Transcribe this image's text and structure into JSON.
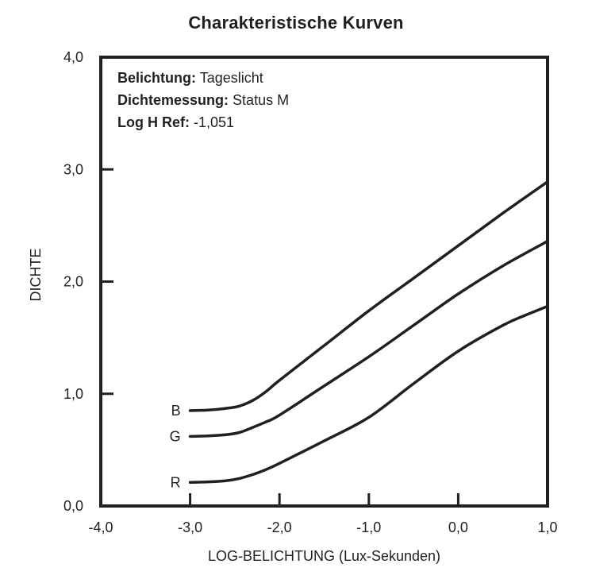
{
  "title": "Charakteristische Kurven",
  "colors": {
    "ink": "#231f20",
    "background": "#ffffff"
  },
  "chart_data": {
    "type": "line",
    "title": "Charakteristische Kurven",
    "xlabel": "LOG-BELICHTUNG (Lux-Sekunden)",
    "ylabel": "DICHTE",
    "xlim": [
      -4.0,
      1.0
    ],
    "ylim": [
      0.0,
      4.0
    ],
    "grid": false,
    "frame": true,
    "legend_position": "curve-start-labels",
    "xticks": {
      "values": [
        -4.0,
        -3.0,
        -2.0,
        -1.0,
        0.0,
        1.0
      ],
      "labels": [
        "-4,0",
        "-3,0",
        "-2,0",
        "-1,0",
        "0,0",
        "1,0"
      ]
    },
    "yticks": {
      "values": [
        0.0,
        1.0,
        2.0,
        3.0,
        4.0
      ],
      "labels": [
        "0,0",
        "1,0",
        "2,0",
        "3,0",
        "4,0"
      ]
    },
    "annotations": [
      {
        "label": "Belichtung:",
        "value": "Tageslicht"
      },
      {
        "label": "Dichtemessung:",
        "value": "Status M"
      },
      {
        "label": "Log H Ref:",
        "value": "-1,051"
      }
    ],
    "series": [
      {
        "name": "B",
        "color": "#231f20",
        "points": [
          [
            -3.0,
            0.85
          ],
          [
            -2.8,
            0.855
          ],
          [
            -2.6,
            0.87
          ],
          [
            -2.45,
            0.89
          ],
          [
            -2.3,
            0.94
          ],
          [
            -2.15,
            1.02
          ],
          [
            -2.0,
            1.12
          ],
          [
            -1.5,
            1.43
          ],
          [
            -1.0,
            1.74
          ],
          [
            -0.5,
            2.03
          ],
          [
            0.0,
            2.32
          ],
          [
            0.5,
            2.61
          ],
          [
            1.0,
            2.89
          ]
        ]
      },
      {
        "name": "G",
        "color": "#231f20",
        "points": [
          [
            -3.0,
            0.62
          ],
          [
            -2.8,
            0.625
          ],
          [
            -2.6,
            0.635
          ],
          [
            -2.45,
            0.655
          ],
          [
            -2.3,
            0.7
          ],
          [
            -2.15,
            0.75
          ],
          [
            -2.0,
            0.81
          ],
          [
            -1.5,
            1.07
          ],
          [
            -1.0,
            1.33
          ],
          [
            -0.5,
            1.61
          ],
          [
            0.0,
            1.89
          ],
          [
            0.5,
            2.14
          ],
          [
            1.0,
            2.36
          ]
        ]
      },
      {
        "name": "R",
        "color": "#231f20",
        "points": [
          [
            -3.0,
            0.21
          ],
          [
            -2.8,
            0.215
          ],
          [
            -2.6,
            0.225
          ],
          [
            -2.45,
            0.245
          ],
          [
            -2.3,
            0.28
          ],
          [
            -2.15,
            0.325
          ],
          [
            -2.0,
            0.38
          ],
          [
            -1.5,
            0.58
          ],
          [
            -1.0,
            0.79
          ],
          [
            -0.5,
            1.09
          ],
          [
            0.0,
            1.38
          ],
          [
            0.5,
            1.61
          ],
          [
            0.75,
            1.7
          ],
          [
            1.0,
            1.78
          ]
        ]
      }
    ]
  }
}
